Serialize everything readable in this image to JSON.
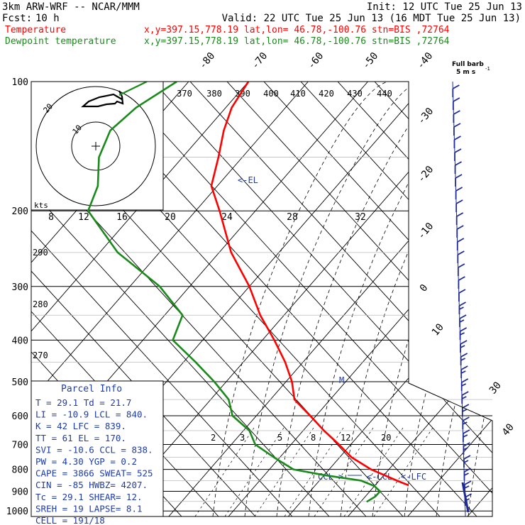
{
  "header": {
    "line1_left": "3km ARW-WRF -- NCAR/MMM",
    "line1_right": "Init: 12 UTC Tue 25 Jun 13",
    "fcst_label": "Fcst:",
    "fcst_value": "10 h",
    "valid": "Valid: 22 UTC Tue 25 Jun 13 (16 MDT Tue 25 Jun 13)",
    "temp_label": "Temperature",
    "temp_loc": "x,y=397.15,778.19   lat,lon= 46.78,-100.76  stn=BIS ,72764",
    "dew_label": "Dewpoint temperature",
    "dew_loc": "x,y=397.15,778.19   lat,lon= 46.78,-100.76  stn=BIS ,72764",
    "full_barb_line1": "Full barb",
    "full_barb_line2": "5 m s",
    "full_barb_exp": "-1"
  },
  "colors": {
    "temperature": "#ff0000",
    "dewpoint": "#1a8a1a",
    "parcel_text": "#1e3caa",
    "barbs": "#1e2a96",
    "grid": "#000000"
  },
  "chart_data": {
    "type": "line",
    "title": "Skew-T log-P sounding",
    "ylabel": "Pressure (hPa)",
    "pressure_levels": [
      100,
      200,
      300,
      400,
      500,
      600,
      700,
      800,
      900,
      1000
    ],
    "pressure_labels": [
      "100",
      "200",
      "300",
      "400",
      "500",
      "600",
      "700",
      "800",
      "900",
      "1000"
    ],
    "isotherms": [
      -80,
      -70,
      -60,
      -50,
      -40,
      -30,
      -20,
      -10,
      0,
      10,
      20,
      30,
      40
    ],
    "isotherm_labels": [
      "-80",
      "-70",
      "-60",
      "-50",
      "-40",
      "-30",
      "-20",
      "-10",
      "0",
      "10",
      "20",
      "30",
      "40"
    ],
    "mixing_ratio_labels": [
      "2",
      "3",
      "5",
      "8",
      "12",
      "20"
    ],
    "theta_labels": [
      "290",
      "280",
      "270"
    ],
    "hodograph_axis_labels": [
      "8",
      "12",
      "16",
      "20",
      "24",
      "28",
      "32"
    ],
    "hodograph_top_labels": [
      "370",
      "380",
      "390",
      "400",
      "410",
      "420",
      "430",
      "440"
    ],
    "hodograph_units": "kts",
    "hodograph_ring_labels": [
      "20",
      "10"
    ],
    "series": [
      {
        "name": "Temperature",
        "pressure": [
          952,
          925,
          900,
          850,
          800,
          750,
          700,
          650,
          600,
          550,
          500,
          450,
          400,
          350,
          300,
          250,
          200,
          175,
          150,
          130,
          115,
          100
        ],
        "values": [
          36,
          33,
          29,
          23,
          17,
          12,
          8,
          3.5,
          -1,
          -6,
          -9,
          -13,
          -18,
          -24,
          -30,
          -38,
          -46,
          -51,
          -54,
          -57,
          -59,
          -60
        ]
      },
      {
        "name": "Dewpoint",
        "pressure": [
          952,
          925,
          900,
          875,
          850,
          825,
          800,
          750,
          700,
          650,
          600,
          550,
          500,
          450,
          400,
          350,
          300,
          250,
          200,
          175,
          150,
          130,
          115,
          100
        ],
        "values": [
          21,
          21.7,
          21.7,
          20,
          17,
          10,
          4,
          -1,
          -6,
          -9,
          -14,
          -17,
          -22,
          -28,
          -35,
          -37,
          -45,
          -57,
          -68,
          -70,
          -74,
          -76,
          -75,
          -72
        ]
      }
    ],
    "annotations": [
      "<-EL",
      "CCL->",
      "<-LCL",
      "<-LFC",
      "M"
    ]
  },
  "parcel": {
    "title": "Parcel Info",
    "rows": [
      "T  =    29.1  Td =  21.7",
      "LI =   -10.9  LCL =  840.",
      "K  =     42  LFC =  839.",
      "TT =     61  EL  =  170.",
      "SVI =  -10.6  CCL =  838.",
      "PW =   4.30  YGP =   0.2",
      "CAPE =  3866  SWEAT=  525",
      "CIN =    -85  HWBZ= 4207.",
      "Tc =   29.1  SHEAR=  12.",
      "SREH =   19  LAPSE=  8.1",
      "CELL = 191/18"
    ]
  }
}
